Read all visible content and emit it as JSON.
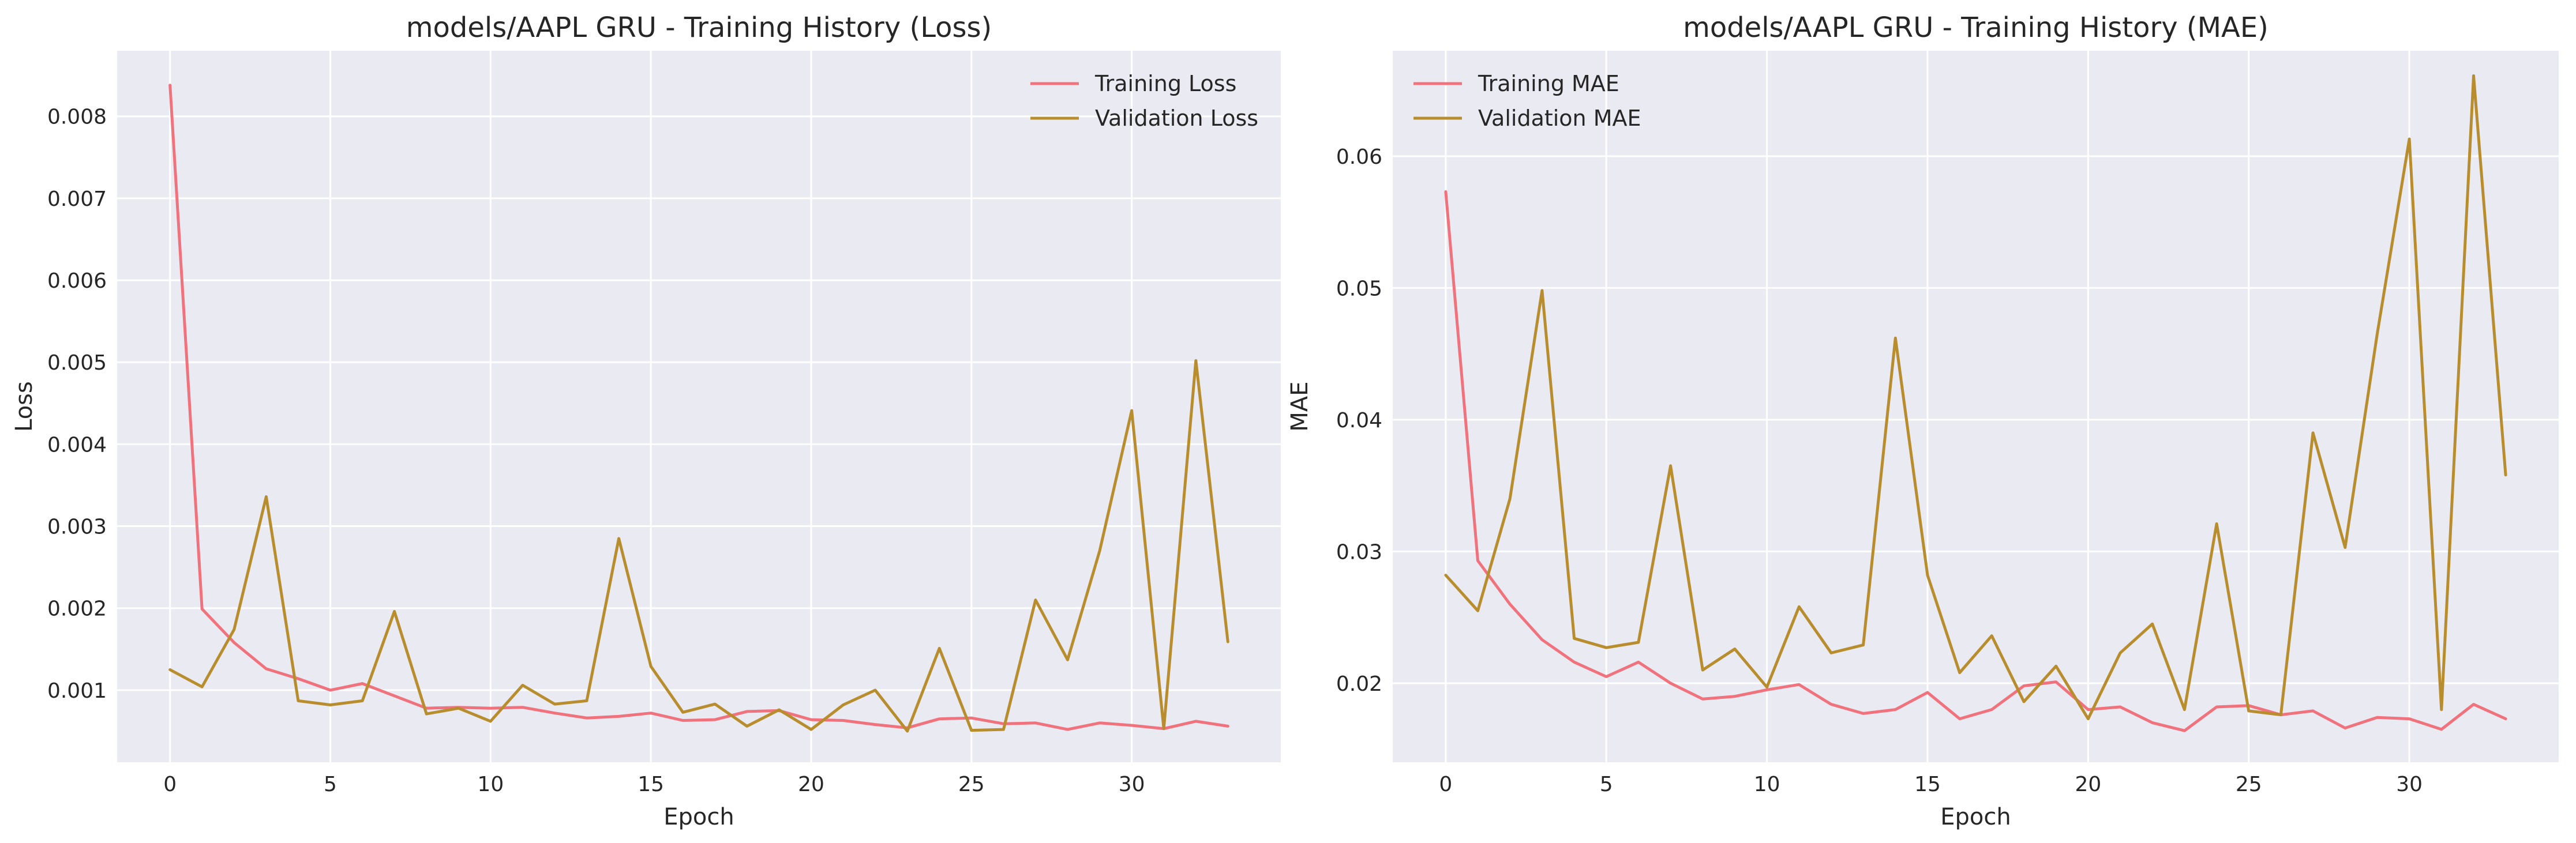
{
  "chart_data": [
    {
      "type": "line",
      "title": "models/AAPL GRU - Training History (Loss)",
      "xlabel": "Epoch",
      "ylabel": "Loss",
      "xlim": [
        -1.65,
        34.65
      ],
      "ylim": [
        0.00012,
        0.0088
      ],
      "xticks": [
        0,
        5,
        10,
        15,
        20,
        25,
        30
      ],
      "yticks": [
        0.001,
        0.002,
        0.003,
        0.004,
        0.005,
        0.006,
        0.007,
        0.008
      ],
      "yticklabels": [
        "0.001",
        "0.002",
        "0.003",
        "0.004",
        "0.005",
        "0.006",
        "0.007",
        "0.008"
      ],
      "legend": "top-right",
      "grid": true,
      "x": [
        0,
        1,
        2,
        3,
        4,
        5,
        6,
        7,
        8,
        9,
        10,
        11,
        12,
        13,
        14,
        15,
        16,
        17,
        18,
        19,
        20,
        21,
        22,
        23,
        24,
        25,
        26,
        27,
        28,
        29,
        30,
        31,
        32,
        33
      ],
      "series": [
        {
          "name": "Training Loss",
          "color": "#f0727c",
          "values": [
            0.00838,
            0.00199,
            0.00158,
            0.00126,
            0.00114,
            0.001,
            0.00108,
            0.00093,
            0.00078,
            0.00079,
            0.00078,
            0.00079,
            0.00072,
            0.00066,
            0.00068,
            0.00072,
            0.00063,
            0.00064,
            0.00074,
            0.00075,
            0.00064,
            0.00063,
            0.00058,
            0.00054,
            0.00065,
            0.00066,
            0.00059,
            0.0006,
            0.00052,
            0.0006,
            0.00057,
            0.00053,
            0.00062,
            0.00056
          ]
        },
        {
          "name": "Validation Loss",
          "color": "#b88d2e",
          "values": [
            0.00125,
            0.00104,
            0.00174,
            0.00336,
            0.00087,
            0.00082,
            0.00087,
            0.00196,
            0.00071,
            0.00078,
            0.00062,
            0.00106,
            0.00083,
            0.00087,
            0.00285,
            0.00129,
            0.00073,
            0.00083,
            0.00056,
            0.00076,
            0.00052,
            0.00082,
            0.001,
            0.0005,
            0.00151,
            0.00051,
            0.00052,
            0.0021,
            0.00137,
            0.0027,
            0.00441,
            0.00053,
            0.00502,
            0.00159
          ]
        }
      ]
    },
    {
      "type": "line",
      "title": "models/AAPL GRU - Training History (MAE)",
      "xlabel": "Epoch",
      "ylabel": "MAE",
      "xlim": [
        -1.65,
        34.65
      ],
      "ylim": [
        0.014,
        0.068
      ],
      "xticks": [
        0,
        5,
        10,
        15,
        20,
        25,
        30
      ],
      "yticks": [
        0.02,
        0.03,
        0.04,
        0.05,
        0.06
      ],
      "yticklabels": [
        "0.02",
        "0.03",
        "0.04",
        "0.05",
        "0.06"
      ],
      "legend": "top-left",
      "grid": true,
      "x": [
        0,
        1,
        2,
        3,
        4,
        5,
        6,
        7,
        8,
        9,
        10,
        11,
        12,
        13,
        14,
        15,
        16,
        17,
        18,
        19,
        20,
        21,
        22,
        23,
        24,
        25,
        26,
        27,
        28,
        29,
        30,
        31,
        32,
        33
      ],
      "series": [
        {
          "name": "Training MAE",
          "color": "#f0727c",
          "values": [
            0.0573,
            0.0293,
            0.026,
            0.0233,
            0.0216,
            0.0205,
            0.0216,
            0.02,
            0.0188,
            0.019,
            0.0195,
            0.0199,
            0.0184,
            0.0177,
            0.018,
            0.0193,
            0.0173,
            0.018,
            0.0198,
            0.0201,
            0.018,
            0.0182,
            0.017,
            0.0164,
            0.0182,
            0.0183,
            0.0176,
            0.0179,
            0.0166,
            0.0174,
            0.0173,
            0.0165,
            0.0184,
            0.0173
          ]
        },
        {
          "name": "Validation MAE",
          "color": "#b88d2e",
          "values": [
            0.0282,
            0.0255,
            0.034,
            0.0498,
            0.0234,
            0.0227,
            0.0231,
            0.0365,
            0.021,
            0.0226,
            0.0197,
            0.0258,
            0.0223,
            0.0229,
            0.0462,
            0.0282,
            0.0208,
            0.0236,
            0.0186,
            0.0213,
            0.0173,
            0.0223,
            0.0245,
            0.018,
            0.0321,
            0.0179,
            0.0176,
            0.039,
            0.0303,
            0.0465,
            0.0613,
            0.018,
            0.0661,
            0.0358
          ]
        }
      ]
    }
  ]
}
